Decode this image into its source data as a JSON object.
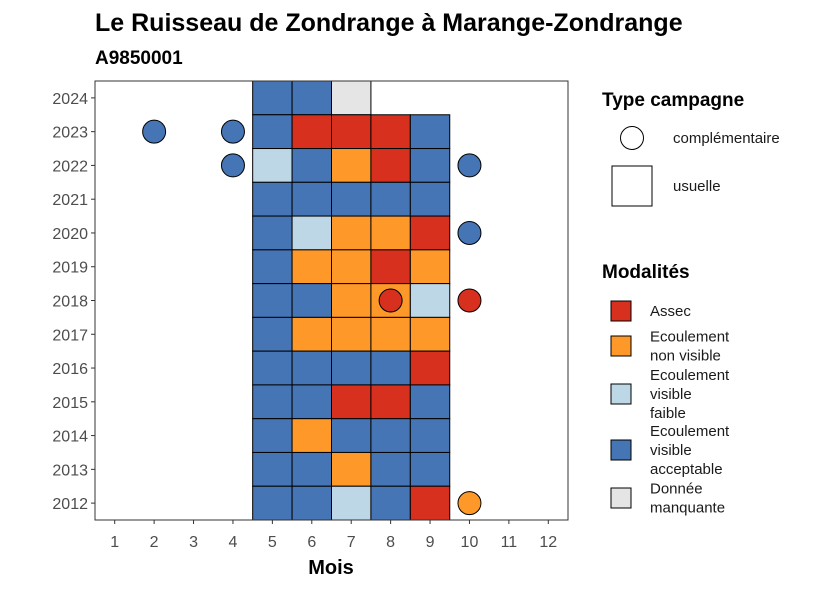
{
  "chart_data": {
    "type": "heatmap",
    "title": "Le Ruisseau de Zondrange à Marange-Zondrange",
    "subtitle": "A9850001",
    "xlabel": "Mois",
    "ylabel": "",
    "x_ticks": [
      1,
      2,
      3,
      4,
      5,
      6,
      7,
      8,
      9,
      10,
      11,
      12
    ],
    "y_ticks": [
      2012,
      2013,
      2014,
      2015,
      2016,
      2017,
      2018,
      2019,
      2020,
      2021,
      2022,
      2023,
      2024
    ],
    "xlim": [
      0.5,
      12.5
    ],
    "ylim": [
      2011.5,
      2024.5
    ],
    "colors": {
      "Assec": "#d7301f",
      "Ecoulement non visible": "#fe9929",
      "Ecoulement visible faible": "#bdd7e7",
      "Ecoulement visible acceptable": "#4575b4",
      "Donnée manquante": "#e5e5e5"
    },
    "legend_campagne": {
      "title": "Type campagne",
      "items": [
        {
          "shape": "circle",
          "label": "complémentaire"
        },
        {
          "shape": "square",
          "label": "usuelle"
        }
      ]
    },
    "legend_modalites": {
      "title": "Modalités",
      "items": [
        {
          "key": "Assec",
          "lines": [
            "Assec"
          ]
        },
        {
          "key": "Ecoulement non visible",
          "lines": [
            "Ecoulement",
            "non visible"
          ]
        },
        {
          "key": "Ecoulement visible faible",
          "lines": [
            "Ecoulement",
            "visible",
            "faible"
          ]
        },
        {
          "key": "Ecoulement visible acceptable",
          "lines": [
            "Ecoulement",
            "visible",
            "acceptable"
          ]
        },
        {
          "key": "Donnée manquante",
          "lines": [
            "Donnée",
            "manquante"
          ]
        }
      ]
    },
    "usuelle": [
      {
        "year": 2024,
        "months": [
          5,
          6,
          7
        ],
        "values": [
          "Ecoulement visible acceptable",
          "Ecoulement visible acceptable",
          "Donnée manquante"
        ]
      },
      {
        "year": 2023,
        "months": [
          5,
          6,
          7,
          8,
          9
        ],
        "values": [
          "Ecoulement visible acceptable",
          "Assec",
          "Assec",
          "Assec",
          "Ecoulement visible acceptable"
        ]
      },
      {
        "year": 2022,
        "months": [
          5,
          6,
          7,
          8,
          9
        ],
        "values": [
          "Ecoulement visible faible",
          "Ecoulement visible acceptable",
          "Ecoulement non visible",
          "Assec",
          "Ecoulement visible acceptable"
        ]
      },
      {
        "year": 2021,
        "months": [
          5,
          6,
          7,
          8,
          9
        ],
        "values": [
          "Ecoulement visible acceptable",
          "Ecoulement visible acceptable",
          "Ecoulement visible acceptable",
          "Ecoulement visible acceptable",
          "Ecoulement visible acceptable"
        ]
      },
      {
        "year": 2020,
        "months": [
          5,
          6,
          7,
          8,
          9
        ],
        "values": [
          "Ecoulement visible acceptable",
          "Ecoulement visible faible",
          "Ecoulement non visible",
          "Ecoulement non visible",
          "Assec"
        ]
      },
      {
        "year": 2019,
        "months": [
          5,
          6,
          7,
          8,
          9
        ],
        "values": [
          "Ecoulement visible acceptable",
          "Ecoulement non visible",
          "Ecoulement non visible",
          "Assec",
          "Ecoulement non visible"
        ]
      },
      {
        "year": 2018,
        "months": [
          5,
          6,
          7,
          8,
          9
        ],
        "values": [
          "Ecoulement visible acceptable",
          "Ecoulement visible acceptable",
          "Ecoulement non visible",
          "Ecoulement non visible",
          "Ecoulement visible faible"
        ]
      },
      {
        "year": 2017,
        "months": [
          5,
          6,
          7,
          8,
          9
        ],
        "values": [
          "Ecoulement visible acceptable",
          "Ecoulement non visible",
          "Ecoulement non visible",
          "Ecoulement non visible",
          "Ecoulement non visible"
        ]
      },
      {
        "year": 2016,
        "months": [
          5,
          6,
          7,
          8,
          9
        ],
        "values": [
          "Ecoulement visible acceptable",
          "Ecoulement visible acceptable",
          "Ecoulement visible acceptable",
          "Ecoulement visible acceptable",
          "Assec"
        ]
      },
      {
        "year": 2015,
        "months": [
          5,
          6,
          7,
          8,
          9
        ],
        "values": [
          "Ecoulement visible acceptable",
          "Ecoulement visible acceptable",
          "Assec",
          "Assec",
          "Ecoulement visible acceptable"
        ]
      },
      {
        "year": 2014,
        "months": [
          5,
          6,
          7,
          8,
          9
        ],
        "values": [
          "Ecoulement visible acceptable",
          "Ecoulement non visible",
          "Ecoulement visible acceptable",
          "Ecoulement visible acceptable",
          "Ecoulement visible acceptable"
        ]
      },
      {
        "year": 2013,
        "months": [
          5,
          6,
          7,
          8,
          9
        ],
        "values": [
          "Ecoulement visible acceptable",
          "Ecoulement visible acceptable",
          "Ecoulement non visible",
          "Ecoulement visible acceptable",
          "Ecoulement visible acceptable"
        ]
      },
      {
        "year": 2012,
        "months": [
          5,
          6,
          7,
          8,
          9
        ],
        "values": [
          "Ecoulement visible acceptable",
          "Ecoulement visible acceptable",
          "Ecoulement visible faible",
          "Ecoulement visible acceptable",
          "Assec"
        ]
      }
    ],
    "complementaire": [
      {
        "year": 2023,
        "month": 2,
        "value": "Ecoulement visible acceptable"
      },
      {
        "year": 2023,
        "month": 4,
        "value": "Ecoulement visible acceptable"
      },
      {
        "year": 2022,
        "month": 4,
        "value": "Ecoulement visible acceptable"
      },
      {
        "year": 2022,
        "month": 10,
        "value": "Ecoulement visible acceptable"
      },
      {
        "year": 2020,
        "month": 10,
        "value": "Ecoulement visible acceptable"
      },
      {
        "year": 2018,
        "month": 8,
        "value": "Assec"
      },
      {
        "year": 2018,
        "month": 10,
        "value": "Assec"
      },
      {
        "year": 2012,
        "month": 10,
        "value": "Ecoulement non visible"
      }
    ]
  }
}
